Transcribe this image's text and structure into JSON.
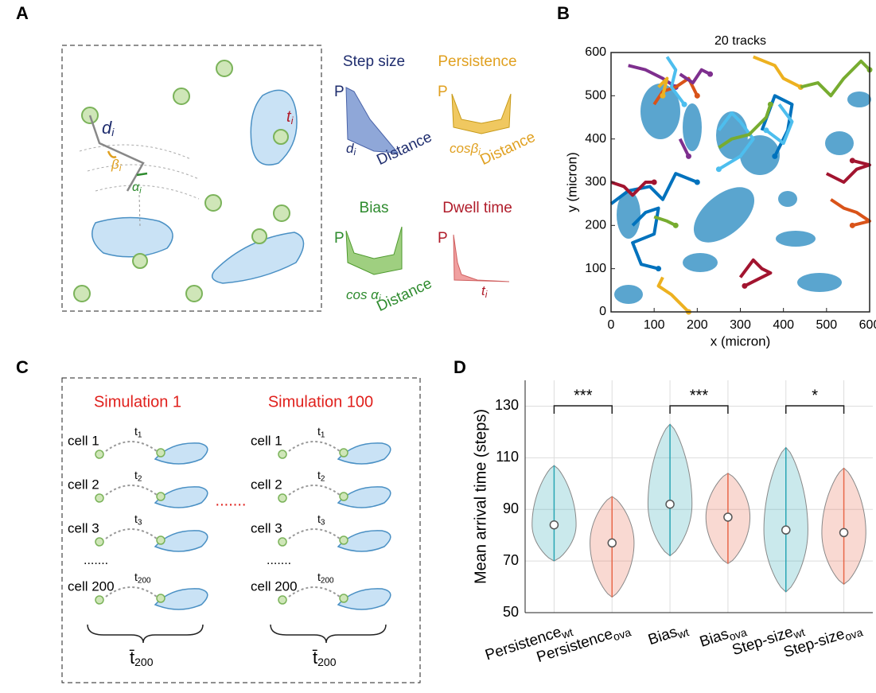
{
  "panel_labels": [
    "A",
    "B",
    "C",
    "D"
  ],
  "panel_a": {
    "symbols": [
      {
        "base": "d",
        "sub": "i"
      },
      {
        "base": "β",
        "sub": "i"
      },
      {
        "base": "α",
        "sub": "i"
      },
      {
        "base": "t",
        "sub": "i"
      }
    ],
    "distributions": [
      {
        "title": "Step size",
        "color": "#1f2d6e",
        "y_label": "P",
        "x_label": "Distance",
        "var": {
          "base": "d",
          "sub": "i"
        }
      },
      {
        "title": "Persistence",
        "color": "#e0a020",
        "y_label": "P",
        "x_label": "Distance",
        "var": {
          "base": "cosβ",
          "sub": "i"
        }
      },
      {
        "title": "Bias",
        "color": "#2e8b2e",
        "y_label": "P",
        "x_label": "Distance",
        "var": {
          "base": "cos α",
          "sub": "i"
        }
      },
      {
        "title": "Dwell time",
        "color": "#b01c2a",
        "y_label": "P",
        "var": {
          "base": "t",
          "sub": "i"
        }
      }
    ]
  },
  "panel_c": {
    "separator": ".......",
    "simulations": [
      {
        "title": "Simulation 1",
        "ellipsis": ".......",
        "mean": {
          "base": "t̄",
          "sub": "200"
        },
        "cells": [
          {
            "label": "cell 1",
            "time": {
              "base": "t",
              "sub": "1"
            }
          },
          {
            "label": "cell 2",
            "time": {
              "base": "t",
              "sub": "2"
            }
          },
          {
            "label": "cell 3",
            "time": {
              "base": "t",
              "sub": "3"
            }
          },
          {
            "label": "cell 200",
            "time": {
              "base": "t",
              "sub": "200"
            }
          }
        ]
      },
      {
        "title": "Simulation 100",
        "ellipsis": ".......",
        "mean": {
          "base": "t̄",
          "sub": "200"
        },
        "cells": [
          {
            "label": "cell 1",
            "time": {
              "base": "t",
              "sub": "1"
            }
          },
          {
            "label": "cell 2",
            "time": {
              "base": "t",
              "sub": "2"
            }
          },
          {
            "label": "cell 3",
            "time": {
              "base": "t",
              "sub": "3"
            }
          },
          {
            "label": "cell 200",
            "time": {
              "base": "t",
              "sub": "200"
            }
          }
        ]
      }
    ]
  },
  "chart_data": [
    {
      "type": "line",
      "title": "20 tracks",
      "x_label": "x (micron)",
      "y_label": "y (micron)",
      "xlim": [
        0,
        600
      ],
      "ylim": [
        0,
        600
      ],
      "xticks": [
        0,
        100,
        200,
        300,
        400,
        500,
        600
      ],
      "yticks": [
        0,
        100,
        200,
        300,
        400,
        500,
        600
      ],
      "series": [
        {
          "color": "#7E2F8E",
          "x": [
            40,
            80,
            120,
            150
          ],
          "values": [
            570,
            560,
            540,
            520
          ]
        },
        {
          "color": "#D95319",
          "x": [
            100,
            120,
            150,
            180,
            200
          ],
          "values": [
            480,
            510,
            520,
            540,
            500
          ]
        },
        {
          "color": "#4DBEEE",
          "x": [
            130,
            150,
            140,
            170
          ],
          "values": [
            590,
            560,
            520,
            480
          ]
        },
        {
          "color": "#EDB120",
          "x": [
            110,
            130,
            120
          ],
          "values": [
            520,
            540,
            500
          ]
        },
        {
          "color": "#7E2F8E",
          "x": [
            160,
            190,
            210,
            230
          ],
          "values": [
            550,
            530,
            560,
            550
          ]
        },
        {
          "color": "#EDB120",
          "x": [
            330,
            380,
            400,
            440
          ],
          "values": [
            590,
            570,
            540,
            520
          ]
        },
        {
          "color": "#77AC30",
          "x": [
            440,
            480,
            510,
            540,
            580,
            600
          ],
          "values": [
            520,
            530,
            500,
            540,
            580,
            560
          ]
        },
        {
          "color": "#4DBEEE",
          "x": [
            250,
            280,
            300,
            330,
            300,
            250
          ],
          "values": [
            420,
            460,
            440,
            400,
            360,
            330
          ]
        },
        {
          "color": "#0072BD",
          "x": [
            350,
            380,
            420,
            410,
            380
          ],
          "values": [
            420,
            500,
            480,
            420,
            360
          ]
        },
        {
          "color": "#77AC30",
          "x": [
            250,
            280,
            320,
            360,
            370
          ],
          "values": [
            380,
            400,
            410,
            450,
            480
          ]
        },
        {
          "color": "#4DBEEE",
          "x": [
            390,
            420,
            400,
            360
          ],
          "values": [
            480,
            440,
            390,
            420
          ]
        },
        {
          "color": "#7E2F8E",
          "x": [
            160,
            170,
            180
          ],
          "values": [
            400,
            380,
            360
          ]
        },
        {
          "color": "#0072BD",
          "x": [
            0,
            40,
            90,
            120,
            150,
            200
          ],
          "values": [
            250,
            280,
            290,
            260,
            320,
            300
          ]
        },
        {
          "color": "#A2142F",
          "x": [
            0,
            30,
            50,
            80,
            100
          ],
          "values": [
            300,
            290,
            270,
            300,
            300
          ]
        },
        {
          "color": "#0072BD",
          "x": [
            50,
            80,
            110,
            100,
            50,
            70,
            110
          ],
          "values": [
            200,
            230,
            240,
            180,
            160,
            110,
            100
          ]
        },
        {
          "color": "#77AC30",
          "x": [
            100,
            130,
            150
          ],
          "values": [
            220,
            210,
            200
          ]
        },
        {
          "color": "#EDB120",
          "x": [
            120,
            110,
            140,
            160,
            180
          ],
          "values": [
            80,
            60,
            40,
            20,
            0
          ]
        },
        {
          "color": "#A2142F",
          "x": [
            300,
            330,
            350,
            370,
            330,
            310
          ],
          "values": [
            80,
            120,
            100,
            90,
            70,
            60
          ]
        },
        {
          "color": "#A2142F",
          "x": [
            500,
            540,
            570,
            600,
            560
          ],
          "values": [
            320,
            300,
            330,
            340,
            350
          ]
        },
        {
          "color": "#D95319",
          "x": [
            510,
            540,
            570,
            600,
            560
          ],
          "values": [
            260,
            240,
            230,
            210,
            200
          ]
        }
      ]
    },
    {
      "type": "violin",
      "y_label": "Mean arrival time (steps)",
      "categories": [
        {
          "name": "Persistence",
          "sub": "wt"
        },
        {
          "name": "Persistence",
          "sub": "ova"
        },
        {
          "name": "Bias",
          "sub": "wt"
        },
        {
          "name": "Bias",
          "sub": "ova"
        },
        {
          "name": "Step-size",
          "sub": "wt"
        },
        {
          "name": "Step-size",
          "sub": "ova"
        }
      ],
      "values": [
        84,
        77,
        92,
        87,
        82,
        81
      ],
      "mins": [
        70,
        56,
        72,
        69,
        58,
        61
      ],
      "maxs": [
        107,
        95,
        123,
        104,
        114,
        106
      ],
      "colors": [
        "#2aa6b5",
        "#e8684a",
        "#2aa6b5",
        "#e8684a",
        "#2aa6b5",
        "#e8684a"
      ],
      "significance": [
        "***",
        "***",
        "*"
      ],
      "ylim": [
        50,
        140
      ],
      "yticks": [
        50,
        70,
        90,
        110,
        130
      ],
      "grid": true
    }
  ]
}
